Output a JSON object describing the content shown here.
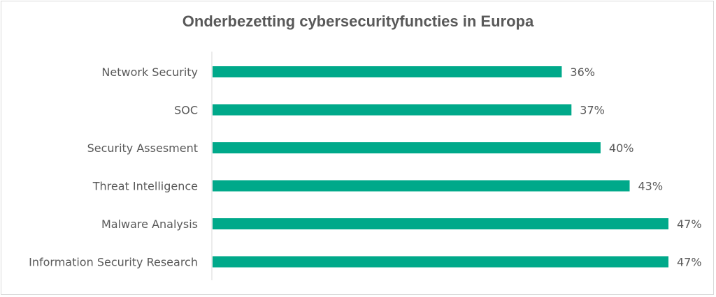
{
  "chart_data": {
    "type": "bar",
    "orientation": "horizontal",
    "title": "Onderbezetting cybersecurityfuncties in Europa",
    "categories": [
      "Network Security",
      "SOC",
      "Security Assesment",
      "Threat Intelligence",
      "Malware Analysis",
      "Information Security Research"
    ],
    "values": [
      36,
      37,
      40,
      43,
      47,
      47
    ],
    "value_labels": [
      "36%",
      "37%",
      "40%",
      "43%",
      "47%",
      "47%"
    ],
    "xlim": [
      0,
      47
    ],
    "grid": false,
    "legend": "none",
    "bar_color": "#00a98a",
    "axis_color": "#d9d9d9"
  }
}
